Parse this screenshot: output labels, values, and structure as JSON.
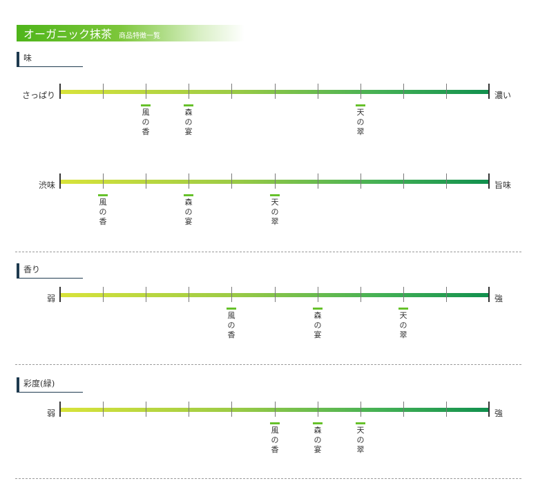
{
  "header": {
    "title": "オーガニック抹茶",
    "subtitle": "商品特徴一覧"
  },
  "sections": [
    {
      "heading": "味",
      "scales": [
        {
          "left": "さっぱり",
          "right": "濃い",
          "markers": [
            {
              "name": "風の香",
              "position": 2
            },
            {
              "name": "森の宴",
              "position": 3
            },
            {
              "name": "天の翠",
              "position": 7
            }
          ]
        },
        {
          "left": "渋味",
          "right": "旨味",
          "markers": [
            {
              "name": "風の香",
              "position": 1
            },
            {
              "name": "森の宴",
              "position": 3
            },
            {
              "name": "天の翠",
              "position": 5
            }
          ]
        }
      ]
    },
    {
      "heading": "香り",
      "scales": [
        {
          "left": "弱",
          "right": "強",
          "markers": [
            {
              "name": "風の香",
              "position": 4
            },
            {
              "name": "森の宴",
              "position": 6
            },
            {
              "name": "天の翠",
              "position": 8
            }
          ]
        }
      ]
    },
    {
      "heading": "彩度(緑)",
      "scales": [
        {
          "left": "弱",
          "right": "強",
          "markers": [
            {
              "name": "風の香",
              "position": 5
            },
            {
              "name": "森の宴",
              "position": 6
            },
            {
              "name": "天の翠",
              "position": 7
            }
          ]
        }
      ]
    }
  ],
  "scale_steps": 10,
  "colors": {
    "title_green": "#4fb51a",
    "marker_green": "#66c12a",
    "bar_start": "#d8e33a",
    "bar_end": "#11904e",
    "heading_accent": "#1e3a4f"
  }
}
